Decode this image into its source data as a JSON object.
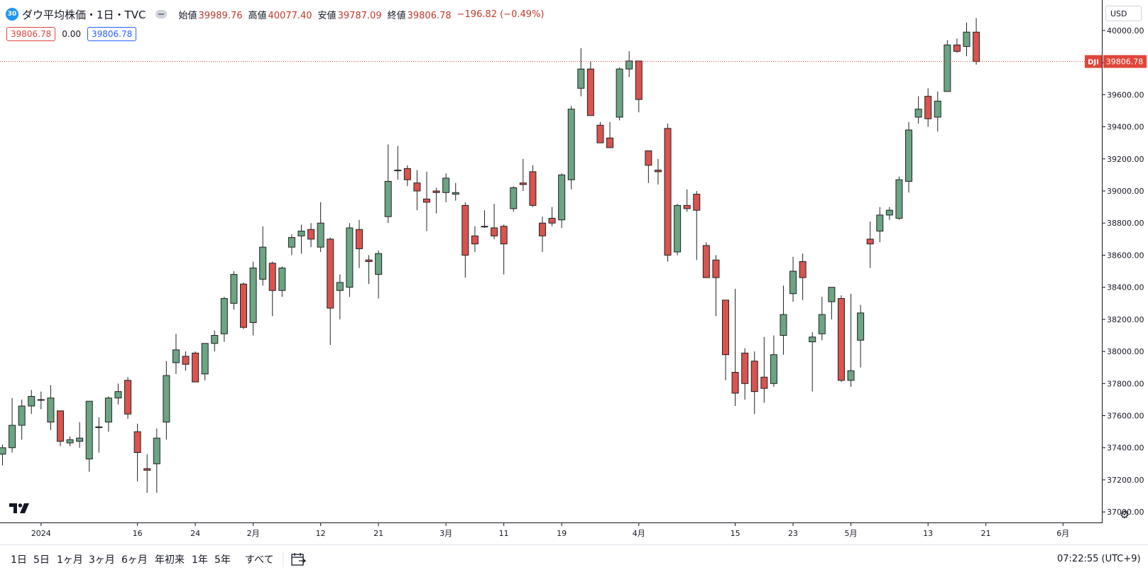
{
  "header": {
    "badge": "30",
    "title": "ダウ平均株価・1日・TVC",
    "ohlc": [
      {
        "key": "始値",
        "value": "39989.76"
      },
      {
        "key": "高値",
        "value": "40077.40"
      },
      {
        "key": "安値",
        "value": "39787.09"
      },
      {
        "key": "終値",
        "value": "39806.78"
      }
    ],
    "change": "−196.82 (−0.49%)",
    "val_left": "39806.78",
    "val_mid": "0.00",
    "val_right": "39806.78"
  },
  "currency": "USD",
  "last_price": {
    "symbol": "DJI",
    "value": "39806.78",
    "price": 39806.78
  },
  "colors": {
    "up": "#6ba583",
    "down": "#d9534f",
    "outline": "#222222",
    "last_line": "#e0463a",
    "accent_blue": "#2962ff"
  },
  "range_buttons": [
    "1日",
    "5日",
    "1ヶ月",
    "3ヶ月",
    "6ヶ月",
    "年初来",
    "1年",
    "5年",
    "すべて"
  ],
  "clock": "07:22:55 (UTC+9)",
  "chart_data": {
    "type": "candlestick",
    "ylim": [
      36930,
      40190
    ],
    "y_ticks": [
      37000,
      37200,
      37400,
      37600,
      37800,
      38000,
      38200,
      38400,
      38600,
      38800,
      39000,
      39200,
      39400,
      39600,
      39800,
      40000
    ],
    "y_tick_labels": [
      "37000.00",
      "37200.00",
      "37400.00",
      "37600.00",
      "37800.00",
      "38000.00",
      "38200.00",
      "38400.00",
      "38600.00",
      "38800.00",
      "39000.00",
      "39200.00",
      "39400.00",
      "39600.00",
      "39800.00",
      "40000.00"
    ],
    "x_labels": [
      {
        "label": "2024",
        "index": 4
      },
      {
        "label": "16",
        "index": 14
      },
      {
        "label": "24",
        "index": 20
      },
      {
        "label": "2月",
        "index": 26
      },
      {
        "label": "12",
        "index": 33
      },
      {
        "label": "21",
        "index": 39
      },
      {
        "label": "3月",
        "index": 46
      },
      {
        "label": "11",
        "index": 52
      },
      {
        "label": "19",
        "index": 58
      },
      {
        "label": "4月",
        "index": 66
      },
      {
        "label": "15",
        "index": 76
      },
      {
        "label": "23",
        "index": 82
      },
      {
        "label": "5月",
        "index": 88
      },
      {
        "label": "13",
        "index": 96
      },
      {
        "label": "21",
        "index": 102
      },
      {
        "label": "6月",
        "index": 110
      }
    ],
    "candles": [
      {
        "o": 37360,
        "h": 37420,
        "l": 37290,
        "c": 37400
      },
      {
        "o": 37400,
        "h": 37710,
        "l": 37370,
        "c": 37540
      },
      {
        "o": 37540,
        "h": 37700,
        "l": 37450,
        "c": 37660
      },
      {
        "o": 37660,
        "h": 37760,
        "l": 37610,
        "c": 37720
      },
      {
        "o": 37700,
        "h": 37750,
        "l": 37640,
        "c": 37700
      },
      {
        "o": 37560,
        "h": 37790,
        "l": 37510,
        "c": 37710
      },
      {
        "o": 37630,
        "h": 37630,
        "l": 37410,
        "c": 37440
      },
      {
        "o": 37430,
        "h": 37470,
        "l": 37410,
        "c": 37450
      },
      {
        "o": 37440,
        "h": 37560,
        "l": 37400,
        "c": 37460
      },
      {
        "o": 37330,
        "h": 37690,
        "l": 37250,
        "c": 37690
      },
      {
        "o": 37530,
        "h": 37590,
        "l": 37370,
        "c": 37530
      },
      {
        "o": 37560,
        "h": 37720,
        "l": 37500,
        "c": 37710
      },
      {
        "o": 37710,
        "h": 37800,
        "l": 37670,
        "c": 37750
      },
      {
        "o": 37820,
        "h": 37840,
        "l": 37580,
        "c": 37610
      },
      {
        "o": 37500,
        "h": 37550,
        "l": 37190,
        "c": 37370
      },
      {
        "o": 37270,
        "h": 37360,
        "l": 37120,
        "c": 37260
      },
      {
        "o": 37300,
        "h": 37520,
        "l": 37120,
        "c": 37460
      },
      {
        "o": 37560,
        "h": 37940,
        "l": 37450,
        "c": 37850
      },
      {
        "o": 37930,
        "h": 38110,
        "l": 37860,
        "c": 38010
      },
      {
        "o": 37970,
        "h": 38000,
        "l": 37880,
        "c": 37920
      },
      {
        "o": 37990,
        "h": 38000,
        "l": 37810,
        "c": 37810
      },
      {
        "o": 37860,
        "h": 38050,
        "l": 37820,
        "c": 38050
      },
      {
        "o": 38050,
        "h": 38130,
        "l": 38000,
        "c": 38100
      },
      {
        "o": 38110,
        "h": 38340,
        "l": 38060,
        "c": 38330
      },
      {
        "o": 38300,
        "h": 38500,
        "l": 38260,
        "c": 38480
      },
      {
        "o": 38420,
        "h": 38430,
        "l": 38140,
        "c": 38150
      },
      {
        "o": 38180,
        "h": 38560,
        "l": 38100,
        "c": 38520
      },
      {
        "o": 38450,
        "h": 38780,
        "l": 38410,
        "c": 38650
      },
      {
        "o": 38550,
        "h": 38560,
        "l": 38220,
        "c": 38380
      },
      {
        "o": 38380,
        "h": 38530,
        "l": 38340,
        "c": 38520
      },
      {
        "o": 38650,
        "h": 38730,
        "l": 38600,
        "c": 38710
      },
      {
        "o": 38720,
        "h": 38790,
        "l": 38610,
        "c": 38750
      },
      {
        "o": 38760,
        "h": 38800,
        "l": 38650,
        "c": 38700
      },
      {
        "o": 38650,
        "h": 38930,
        "l": 38620,
        "c": 38800
      },
      {
        "o": 38700,
        "h": 38710,
        "l": 38040,
        "c": 38270
      },
      {
        "o": 38380,
        "h": 38480,
        "l": 38200,
        "c": 38430
      },
      {
        "o": 38400,
        "h": 38800,
        "l": 38340,
        "c": 38770
      },
      {
        "o": 38760,
        "h": 38820,
        "l": 38520,
        "c": 38640
      },
      {
        "o": 38570,
        "h": 38600,
        "l": 38420,
        "c": 38560
      },
      {
        "o": 38480,
        "h": 38630,
        "l": 38330,
        "c": 38610
      },
      {
        "o": 38840,
        "h": 39290,
        "l": 38800,
        "c": 39060
      },
      {
        "o": 39130,
        "h": 39280,
        "l": 39070,
        "c": 39130
      },
      {
        "o": 39140,
        "h": 39160,
        "l": 39030,
        "c": 39070
      },
      {
        "o": 39050,
        "h": 39130,
        "l": 38880,
        "c": 39000
      },
      {
        "o": 38950,
        "h": 39120,
        "l": 38750,
        "c": 38930
      },
      {
        "o": 39000,
        "h": 39020,
        "l": 38860,
        "c": 38990
      },
      {
        "o": 38990,
        "h": 39110,
        "l": 38930,
        "c": 39080
      },
      {
        "o": 38980,
        "h": 39050,
        "l": 38940,
        "c": 38990
      },
      {
        "o": 38910,
        "h": 38930,
        "l": 38460,
        "c": 38600
      },
      {
        "o": 38720,
        "h": 38780,
        "l": 38620,
        "c": 38670
      },
      {
        "o": 38780,
        "h": 38880,
        "l": 38770,
        "c": 38780
      },
      {
        "o": 38770,
        "h": 38920,
        "l": 38700,
        "c": 38720
      },
      {
        "o": 38780,
        "h": 38790,
        "l": 38480,
        "c": 38670
      },
      {
        "o": 38890,
        "h": 39030,
        "l": 38870,
        "c": 39020
      },
      {
        "o": 39050,
        "h": 39200,
        "l": 39000,
        "c": 39040
      },
      {
        "o": 39120,
        "h": 39160,
        "l": 38900,
        "c": 38910
      },
      {
        "o": 38800,
        "h": 38840,
        "l": 38620,
        "c": 38720
      },
      {
        "o": 38830,
        "h": 38900,
        "l": 38780,
        "c": 38800
      },
      {
        "o": 38820,
        "h": 39110,
        "l": 38770,
        "c": 39100
      },
      {
        "o": 39070,
        "h": 39530,
        "l": 39010,
        "c": 39510
      },
      {
        "o": 39640,
        "h": 39890,
        "l": 39590,
        "c": 39760
      },
      {
        "o": 39760,
        "h": 39810,
        "l": 39470,
        "c": 39470
      },
      {
        "o": 39410,
        "h": 39430,
        "l": 39300,
        "c": 39300
      },
      {
        "o": 39330,
        "h": 39430,
        "l": 39270,
        "c": 39270
      },
      {
        "o": 39460,
        "h": 39770,
        "l": 39440,
        "c": 39760
      },
      {
        "o": 39760,
        "h": 39870,
        "l": 39710,
        "c": 39810
      },
      {
        "o": 39810,
        "h": 39810,
        "l": 39490,
        "c": 39570
      },
      {
        "o": 39250,
        "h": 39250,
        "l": 39050,
        "c": 39160
      },
      {
        "o": 39130,
        "h": 39200,
        "l": 39040,
        "c": 39120
      },
      {
        "o": 39390,
        "h": 39420,
        "l": 38560,
        "c": 38600
      },
      {
        "o": 38620,
        "h": 38920,
        "l": 38600,
        "c": 38910
      },
      {
        "o": 38910,
        "h": 39010,
        "l": 38870,
        "c": 38890
      },
      {
        "o": 38980,
        "h": 39000,
        "l": 38570,
        "c": 38880
      },
      {
        "o": 38660,
        "h": 38680,
        "l": 38460,
        "c": 38460
      },
      {
        "o": 38570,
        "h": 38600,
        "l": 38220,
        "c": 38460
      },
      {
        "o": 38320,
        "h": 38320,
        "l": 37820,
        "c": 37980
      },
      {
        "o": 37870,
        "h": 38390,
        "l": 37660,
        "c": 37740
      },
      {
        "o": 37990,
        "h": 38020,
        "l": 37700,
        "c": 37800
      },
      {
        "o": 37940,
        "h": 38000,
        "l": 37610,
        "c": 37750
      },
      {
        "o": 37840,
        "h": 38090,
        "l": 37680,
        "c": 37770
      },
      {
        "o": 37800,
        "h": 38100,
        "l": 37780,
        "c": 37980
      },
      {
        "o": 38100,
        "h": 38410,
        "l": 37980,
        "c": 38230
      },
      {
        "o": 38360,
        "h": 38590,
        "l": 38310,
        "c": 38500
      },
      {
        "o": 38560,
        "h": 38610,
        "l": 38320,
        "c": 38460
      },
      {
        "o": 38060,
        "h": 38120,
        "l": 37750,
        "c": 38090
      },
      {
        "o": 38110,
        "h": 38340,
        "l": 38070,
        "c": 38230
      },
      {
        "o": 38310,
        "h": 38400,
        "l": 38200,
        "c": 38400
      },
      {
        "o": 38330,
        "h": 38350,
        "l": 37810,
        "c": 37820
      },
      {
        "o": 37820,
        "h": 38360,
        "l": 37780,
        "c": 37880
      },
      {
        "o": 38070,
        "h": 38290,
        "l": 37900,
        "c": 38240
      },
      {
        "o": 38700,
        "h": 38810,
        "l": 38520,
        "c": 38670
      },
      {
        "o": 38750,
        "h": 38900,
        "l": 38680,
        "c": 38850
      },
      {
        "o": 38850,
        "h": 38900,
        "l": 38820,
        "c": 38880
      },
      {
        "o": 38830,
        "h": 39090,
        "l": 38820,
        "c": 39070
      },
      {
        "o": 39060,
        "h": 39430,
        "l": 38990,
        "c": 39380
      },
      {
        "o": 39460,
        "h": 39590,
        "l": 39420,
        "c": 39510
      },
      {
        "o": 39590,
        "h": 39640,
        "l": 39400,
        "c": 39450
      },
      {
        "o": 39460,
        "h": 39620,
        "l": 39370,
        "c": 39560
      },
      {
        "o": 39620,
        "h": 39940,
        "l": 39620,
        "c": 39910
      },
      {
        "o": 39910,
        "h": 39950,
        "l": 39860,
        "c": 39870
      },
      {
        "o": 39900,
        "h": 40050,
        "l": 39840,
        "c": 39990
      },
      {
        "o": 39989.76,
        "h": 40077.4,
        "l": 39787.09,
        "c": 39806.78
      }
    ]
  }
}
